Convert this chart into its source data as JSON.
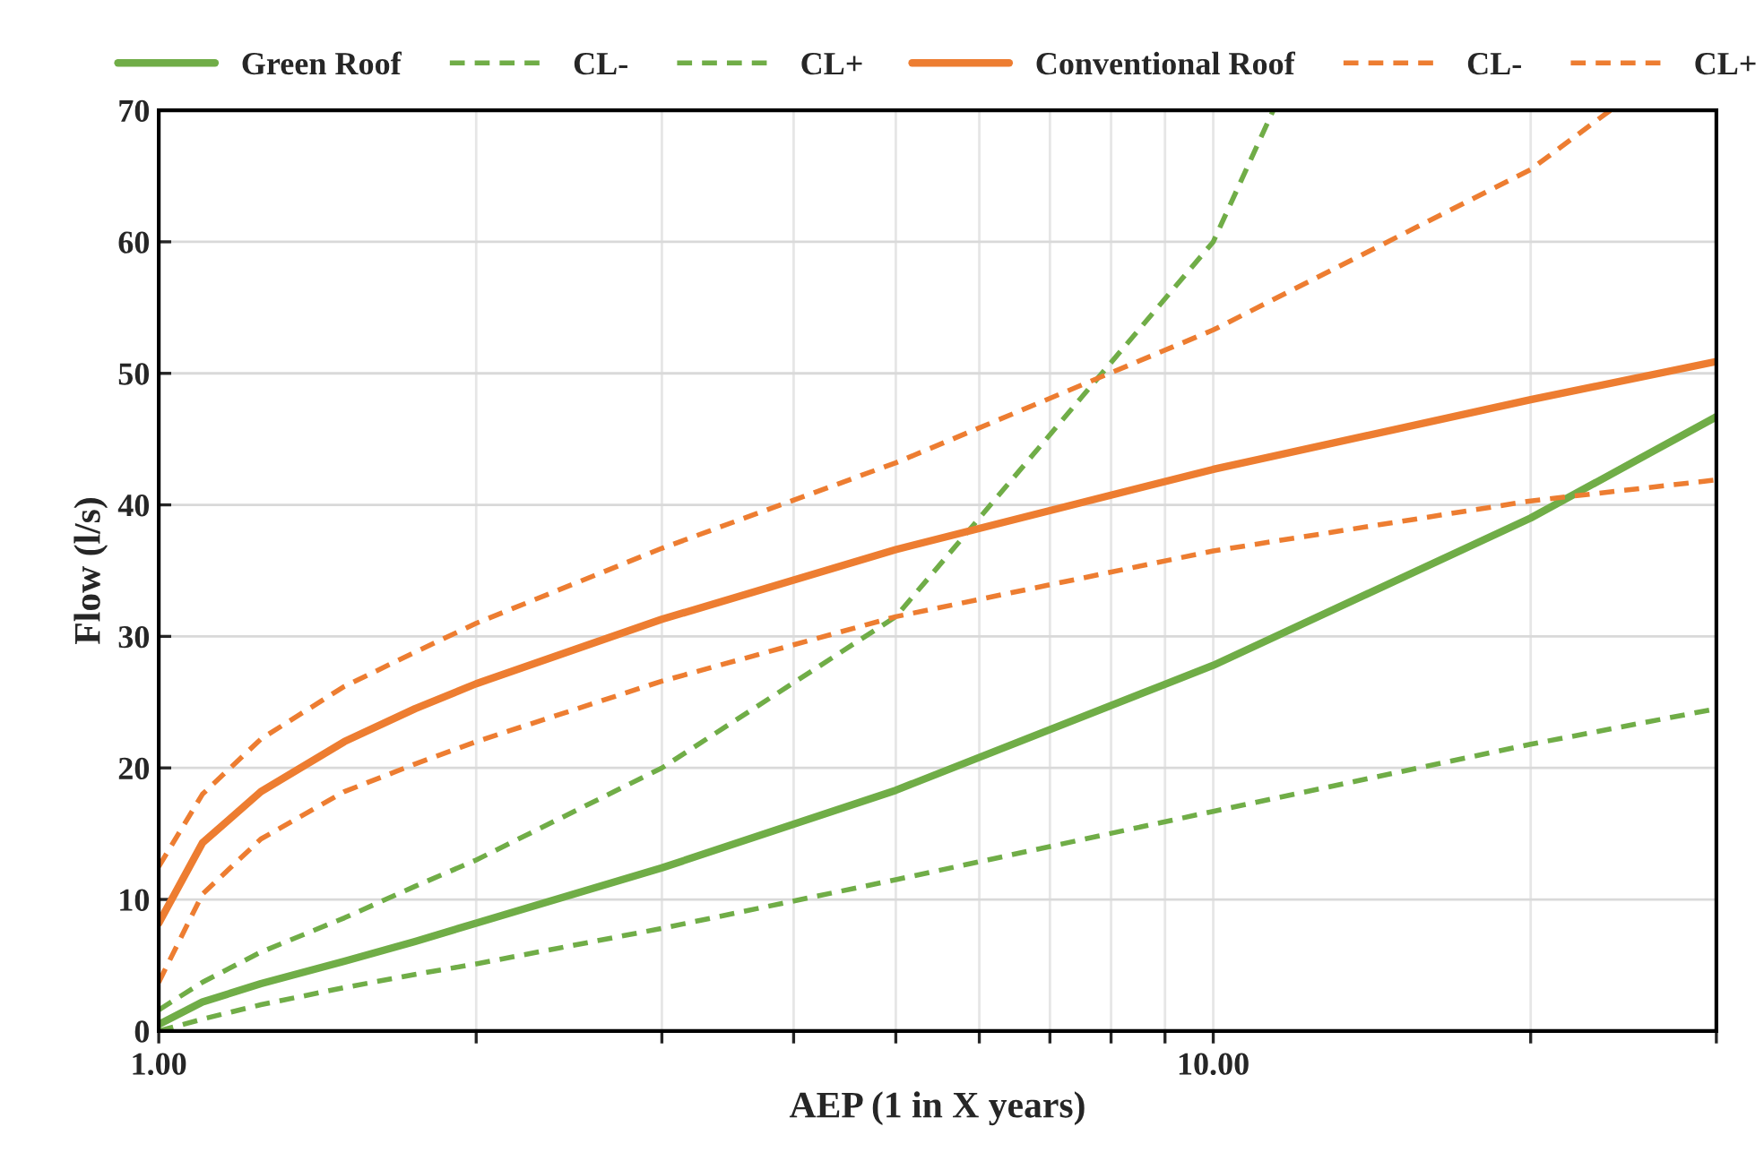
{
  "chart_data": {
    "type": "line",
    "xlabel": "AEP (1 in X years)",
    "ylabel": "Flow (l/s)",
    "log": "x",
    "x": [
      1,
      1.1,
      1.25,
      1.5,
      1.75,
      2,
      3,
      5,
      10,
      20,
      30
    ],
    "xlim": [
      1,
      30
    ],
    "xticks": [
      {
        "value": 1,
        "label": "1.00"
      },
      {
        "value": 10,
        "label": "10.00"
      }
    ],
    "ylim": [
      0,
      70
    ],
    "yticks": [
      0,
      10,
      20,
      30,
      40,
      50,
      60,
      70
    ],
    "grid": true,
    "legend": "top",
    "marker": "none",
    "series": [
      {
        "name": "Green Roof",
        "color": "#70ad47",
        "line_style": "solid",
        "values": [
          0.5,
          2.2,
          3.6,
          5.3,
          6.8,
          8.2,
          12.4,
          18.3,
          27.8,
          39,
          46.7
        ]
      },
      {
        "name": "CL-",
        "color": "#70ad47",
        "line_style": "dashed",
        "values": [
          0,
          0.9,
          2,
          3.3,
          4.3,
          5.1,
          7.8,
          11.5,
          16.7,
          21.8,
          24.5
        ]
      },
      {
        "name": "CL+",
        "color": "#70ad47",
        "line_style": "dashed",
        "x": [
          1,
          1.1,
          1.25,
          1.5,
          1.75,
          2,
          3,
          5,
          10,
          11.4
        ],
        "values": [
          1.6,
          3.7,
          6,
          8.6,
          11,
          13,
          20,
          31.5,
          60,
          70
        ]
      },
      {
        "name": "Conventional Roof",
        "color": "#ed7d31",
        "line_style": "solid",
        "values": [
          8.2,
          14.3,
          18.2,
          22,
          24.5,
          26.4,
          31.3,
          36.6,
          42.7,
          48,
          50.9
        ]
      },
      {
        "name": "CL-",
        "color": "#ed7d31",
        "line_style": "dashed",
        "values": [
          3.7,
          10.4,
          14.6,
          18.2,
          20.3,
          22,
          26.6,
          31.5,
          36.5,
          40.3,
          41.9
        ]
      },
      {
        "name": "CL+",
        "color": "#ed7d31",
        "line_style": "dashed",
        "x": [
          1,
          1.1,
          1.25,
          1.5,
          1.75,
          2,
          3,
          5,
          10,
          20,
          23.8
        ],
        "values": [
          12.5,
          18,
          22.2,
          26.2,
          28.8,
          31,
          36.7,
          43.2,
          53.3,
          65.5,
          70
        ]
      }
    ]
  }
}
